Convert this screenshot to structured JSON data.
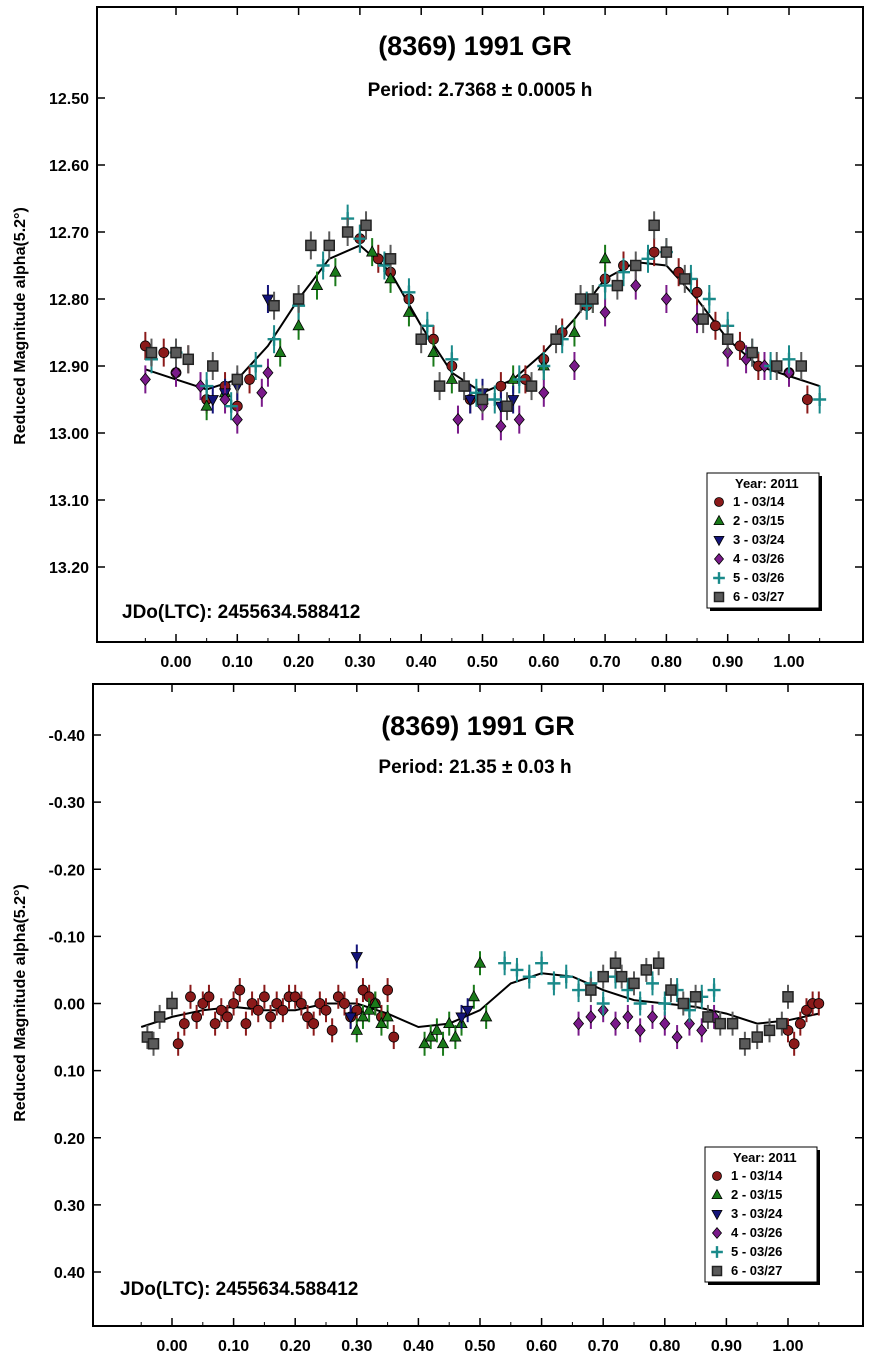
{
  "chart_data": [
    {
      "type": "scatter",
      "title": "(8369) 1991 GR",
      "subtitle": "Period: 2.7368 ± 0.0005 h",
      "xlabel": "",
      "ylabel": "Reduced Magnitude alpha(5.2°)",
      "xlim": [
        -0.1,
        1.1
      ],
      "ylim": [
        12.3,
        13.3
      ],
      "y_inverted": true,
      "x_ticks": [
        "0.00",
        "0.10",
        "0.20",
        "0.30",
        "0.40",
        "0.50",
        "0.60",
        "0.70",
        "0.80",
        "0.90",
        "1.00"
      ],
      "y_ticks": [
        "12.50",
        "12.60",
        "12.70",
        "12.80",
        "12.90",
        "13.00",
        "13.10",
        "13.20"
      ],
      "epoch_label": "JDo(LTC): 2455634.588412",
      "legend": {
        "title": "Year: 2011",
        "position": "bottom-right",
        "entries": [
          "1 - 03/14",
          "2 - 03/15",
          "3 - 03/24",
          "4 - 03/26",
          "5 - 03/26",
          "6 - 03/27"
        ]
      },
      "fit_curve": {
        "x": [
          -0.05,
          0.0,
          0.05,
          0.1,
          0.15,
          0.2,
          0.25,
          0.3,
          0.35,
          0.4,
          0.45,
          0.5,
          0.55,
          0.6,
          0.65,
          0.7,
          0.75,
          0.8,
          0.85,
          0.9,
          0.95,
          1.0,
          1.05
        ],
        "y": [
          12.905,
          12.92,
          12.935,
          12.92,
          12.87,
          12.8,
          12.74,
          12.72,
          12.76,
          12.84,
          12.91,
          12.94,
          12.92,
          12.88,
          12.83,
          12.77,
          12.745,
          12.75,
          12.8,
          12.86,
          12.9,
          12.915,
          12.93
        ]
      },
      "series": [
        {
          "name": "1 - 03/14",
          "marker": "circle",
          "color": "#8b1a1a",
          "x": [
            -0.05,
            -0.02,
            0.0,
            0.02,
            0.05,
            0.08,
            0.1,
            0.12,
            0.3,
            0.33,
            0.35,
            0.38,
            0.42,
            0.45,
            0.48,
            0.53,
            0.57,
            0.6,
            0.63,
            0.67,
            0.7,
            0.73,
            0.78,
            0.82,
            0.85,
            0.88,
            0.92,
            0.95,
            1.0,
            1.03
          ],
          "y": [
            12.87,
            12.88,
            12.91,
            12.89,
            12.95,
            12.93,
            12.96,
            12.92,
            12.71,
            12.74,
            12.76,
            12.8,
            12.86,
            12.9,
            12.95,
            12.93,
            12.92,
            12.89,
            12.85,
            12.81,
            12.77,
            12.75,
            12.73,
            12.76,
            12.79,
            12.84,
            12.87,
            12.9,
            12.91,
            12.95
          ]
        },
        {
          "name": "2 - 03/15",
          "marker": "triangle-up",
          "color": "#1a7a1a",
          "x": [
            0.05,
            0.08,
            0.17,
            0.2,
            0.23,
            0.26,
            0.32,
            0.35,
            0.38,
            0.42,
            0.45,
            0.5,
            0.55,
            0.6,
            0.65,
            0.68,
            0.7
          ],
          "y": [
            12.96,
            12.94,
            12.88,
            12.84,
            12.78,
            12.76,
            12.73,
            12.77,
            12.82,
            12.88,
            12.92,
            12.95,
            12.92,
            12.9,
            12.85,
            12.8,
            12.74
          ]
        },
        {
          "name": "3 - 03/24",
          "marker": "triangle-down",
          "color": "#14147a",
          "x": [
            0.06,
            0.08,
            0.1,
            0.15,
            0.48,
            0.5,
            0.53,
            0.55
          ],
          "y": [
            12.95,
            12.94,
            12.93,
            12.8,
            12.95,
            12.94,
            12.96,
            12.95
          ]
        },
        {
          "name": "4 - 03/26",
          "marker": "diamond",
          "color": "#7a1a8a",
          "x": [
            -0.05,
            0.0,
            0.04,
            0.08,
            0.1,
            0.14,
            0.15,
            0.46,
            0.5,
            0.53,
            0.56,
            0.6,
            0.65,
            0.7,
            0.75,
            0.8,
            0.85,
            0.9,
            0.93,
            0.96,
            1.0
          ],
          "y": [
            12.92,
            12.91,
            12.93,
            12.95,
            12.98,
            12.94,
            12.91,
            12.98,
            12.96,
            12.99,
            12.98,
            12.94,
            12.9,
            12.82,
            12.78,
            12.8,
            12.83,
            12.88,
            12.89,
            12.9,
            12.91
          ]
        },
        {
          "name": "5 - 03/26",
          "marker": "plus",
          "color": "#1a8a8a",
          "x": [
            -0.04,
            0.0,
            0.05,
            0.09,
            0.13,
            0.16,
            0.2,
            0.24,
            0.28,
            0.3,
            0.34,
            0.38,
            0.41,
            0.45,
            0.49,
            0.52,
            0.56,
            0.6,
            0.63,
            0.67,
            0.7,
            0.73,
            0.77,
            0.8,
            0.84,
            0.87,
            0.9,
            0.94,
            0.97,
            1.0,
            1.05
          ],
          "y": [
            12.89,
            12.88,
            12.93,
            12.96,
            12.9,
            12.86,
            12.81,
            12.75,
            12.68,
            12.71,
            12.75,
            12.79,
            12.84,
            12.89,
            12.94,
            12.95,
            12.92,
            12.9,
            12.86,
            12.81,
            12.78,
            12.76,
            12.74,
            12.73,
            12.77,
            12.8,
            12.84,
            12.88,
            12.9,
            12.89,
            12.95
          ]
        },
        {
          "name": "6 - 03/27",
          "marker": "square",
          "color": "#5a5a5a",
          "x": [
            -0.04,
            0.0,
            0.02,
            0.06,
            0.1,
            0.16,
            0.2,
            0.22,
            0.25,
            0.28,
            0.31,
            0.35,
            0.4,
            0.43,
            0.47,
            0.5,
            0.54,
            0.58,
            0.62,
            0.66,
            0.68,
            0.72,
            0.75,
            0.78,
            0.8,
            0.83,
            0.86,
            0.9,
            0.94,
            0.98,
            1.02
          ],
          "y": [
            12.88,
            12.88,
            12.89,
            12.9,
            12.92,
            12.81,
            12.8,
            12.72,
            12.72,
            12.7,
            12.69,
            12.74,
            12.86,
            12.93,
            12.93,
            12.95,
            12.96,
            12.93,
            12.86,
            12.8,
            12.8,
            12.78,
            12.75,
            12.69,
            12.73,
            12.77,
            12.83,
            12.86,
            12.88,
            12.9,
            12.9
          ]
        }
      ]
    },
    {
      "type": "scatter",
      "title": "(8369) 1991 GR",
      "subtitle": "Period: 21.35 ± 0.03 h",
      "xlabel": "",
      "ylabel": "Reduced Magnitude alpha(5.2°)",
      "xlim": [
        -0.1,
        1.1
      ],
      "ylim": [
        -0.5,
        0.5
      ],
      "y_inverted": true,
      "x_ticks": [
        "0.00",
        "0.10",
        "0.20",
        "0.30",
        "0.40",
        "0.50",
        "0.60",
        "0.70",
        "0.80",
        "0.90",
        "1.00"
      ],
      "y_ticks": [
        "-0.40",
        "-0.30",
        "-0.20",
        "-0.10",
        "0.00",
        "0.10",
        "0.20",
        "0.30",
        "0.40"
      ],
      "epoch_label": "JDo(LTC): 2455634.588412",
      "legend": {
        "title": "Year: 2011",
        "position": "bottom-right",
        "entries": [
          "1 - 03/14",
          "2 - 03/15",
          "3 - 03/24",
          "4 - 03/26",
          "5 - 03/26",
          "6 - 03/27"
        ]
      },
      "fit_curve": {
        "x": [
          -0.05,
          0.0,
          0.05,
          0.1,
          0.15,
          0.2,
          0.25,
          0.3,
          0.35,
          0.4,
          0.45,
          0.5,
          0.55,
          0.6,
          0.65,
          0.7,
          0.75,
          0.8,
          0.85,
          0.9,
          0.95,
          1.0,
          1.05
        ],
        "y": [
          0.035,
          0.02,
          0.01,
          0.005,
          0.01,
          0.01,
          0.0,
          0.0,
          0.015,
          0.035,
          0.03,
          0.01,
          -0.03,
          -0.045,
          -0.04,
          -0.02,
          -0.005,
          0.0,
          0.005,
          0.015,
          0.03,
          0.025,
          0.015
        ]
      },
      "series": [
        {
          "name": "1 - 03/14",
          "marker": "circle",
          "color": "#8b1a1a",
          "x": [
            0.0,
            0.01,
            0.02,
            0.03,
            0.04,
            0.05,
            0.06,
            0.07,
            0.08,
            0.09,
            0.1,
            0.11,
            0.12,
            0.13,
            0.14,
            0.15,
            0.16,
            0.17,
            0.18,
            0.19,
            0.2,
            0.21,
            0.22,
            0.23,
            0.24,
            0.25,
            0.26,
            0.27,
            0.28,
            0.29,
            0.3,
            0.31,
            0.32,
            0.33,
            0.34,
            0.35,
            0.36,
            1.0,
            1.01,
            1.02,
            1.03,
            1.04,
            1.05
          ],
          "y": [
            0.0,
            0.06,
            0.03,
            -0.01,
            0.02,
            0.0,
            -0.01,
            0.03,
            0.01,
            0.02,
            0.0,
            -0.02,
            0.03,
            0.0,
            0.01,
            -0.01,
            0.02,
            0.0,
            0.01,
            -0.01,
            -0.01,
            0.0,
            0.02,
            0.03,
            0.0,
            0.01,
            0.04,
            -0.01,
            0.0,
            0.02,
            0.01,
            -0.02,
            -0.01,
            0.0,
            0.02,
            -0.02,
            0.05,
            0.04,
            0.06,
            0.03,
            0.01,
            0.0,
            0.0
          ]
        },
        {
          "name": "2 - 03/15",
          "marker": "triangle-up",
          "color": "#1a7a1a",
          "x": [
            0.3,
            0.31,
            0.32,
            0.33,
            0.34,
            0.35,
            0.41,
            0.42,
            0.43,
            0.44,
            0.45,
            0.46,
            0.47,
            0.49,
            0.5,
            0.51
          ],
          "y": [
            0.04,
            0.02,
            0.01,
            0.0,
            0.03,
            0.02,
            0.06,
            0.05,
            0.04,
            0.06,
            0.03,
            0.05,
            0.03,
            -0.01,
            -0.06,
            0.02
          ]
        },
        {
          "name": "3 - 03/24",
          "marker": "triangle-down",
          "color": "#14147a",
          "x": [
            0.29,
            0.3,
            0.47,
            0.48
          ],
          "y": [
            0.02,
            -0.07,
            0.02,
            0.01
          ]
        },
        {
          "name": "4 - 03/26",
          "marker": "diamond",
          "color": "#7a1a8a",
          "x": [
            0.66,
            0.68,
            0.7,
            0.72,
            0.74,
            0.76,
            0.78,
            0.8,
            0.82,
            0.84,
            0.86,
            0.88
          ],
          "y": [
            0.03,
            0.02,
            0.01,
            0.03,
            0.02,
            0.04,
            0.02,
            0.03,
            0.05,
            0.03,
            0.04,
            0.02
          ]
        },
        {
          "name": "5 - 03/26",
          "marker": "plus",
          "color": "#1a8a8a",
          "x": [
            0.54,
            0.56,
            0.58,
            0.6,
            0.62,
            0.64,
            0.66,
            0.68,
            0.7,
            0.72,
            0.74,
            0.76,
            0.78,
            0.8,
            0.82,
            0.84,
            0.86,
            0.88
          ],
          "y": [
            -0.06,
            -0.05,
            -0.04,
            -0.06,
            -0.03,
            -0.04,
            -0.02,
            -0.03,
            0.0,
            -0.04,
            -0.02,
            0.0,
            -0.03,
            0.0,
            -0.02,
            0.01,
            -0.01,
            -0.02
          ]
        },
        {
          "name": "6 - 03/27",
          "marker": "square",
          "color": "#5a5a5a",
          "x": [
            -0.04,
            -0.03,
            -0.02,
            0.0,
            0.68,
            0.7,
            0.72,
            0.73,
            0.75,
            0.77,
            0.79,
            0.81,
            0.83,
            0.85,
            0.87,
            0.89,
            0.91,
            0.93,
            0.95,
            0.97,
            0.99,
            1.0
          ],
          "y": [
            0.05,
            0.06,
            0.02,
            0.0,
            -0.02,
            -0.04,
            -0.06,
            -0.04,
            -0.03,
            -0.05,
            -0.06,
            -0.02,
            0.0,
            -0.01,
            0.02,
            0.03,
            0.03,
            0.06,
            0.05,
            0.04,
            0.03,
            -0.01
          ]
        }
      ]
    }
  ]
}
